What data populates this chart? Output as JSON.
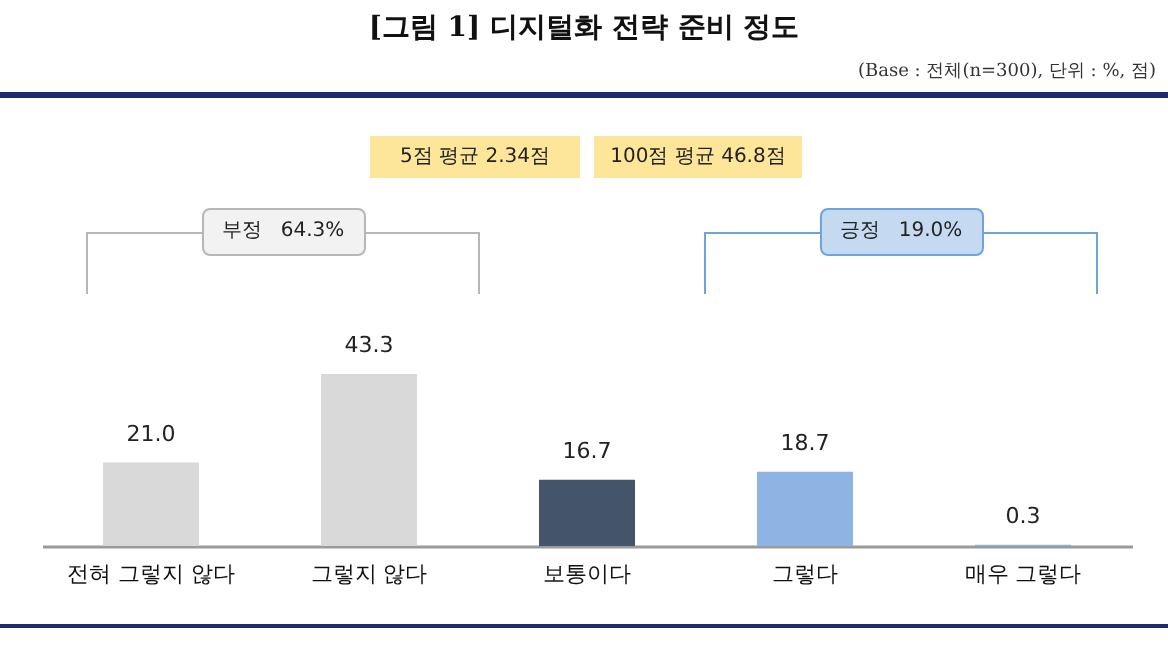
{
  "chart_data": {
    "type": "bar",
    "title": "[그림 1] 디지털화 전략 준비 정도",
    "subtitle": "(Base : 전체(n=300), 단위 : %, 점)",
    "categories": [
      "전혀 그렇지 않다",
      "그렇지 않다",
      "보통이다",
      "그렇다",
      "매우 그렇다"
    ],
    "values": [
      21.0,
      43.3,
      16.7,
      18.7,
      0.3
    ],
    "colors": [
      "#d9d9d9",
      "#d9d9d9",
      "#44546a",
      "#8db4e2",
      "#8db4e2"
    ],
    "value_labels": [
      "21.0",
      "43.3",
      "16.7",
      "18.7",
      "0.3"
    ],
    "grid": false,
    "legend": false,
    "tick_labels": "x",
    "annotations": [
      "5점 평균 2.34점",
      "100점 평균 46.8점",
      "부정   64.3%",
      "긍정   19.0%"
    ]
  }
}
